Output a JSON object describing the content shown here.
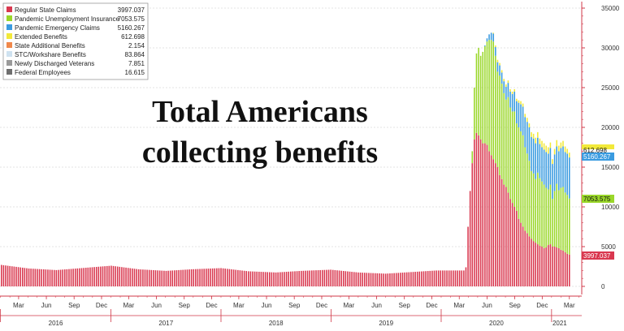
{
  "chart_data": {
    "type": "bar",
    "stacked": true,
    "title": "Total Americans collecting benefits",
    "ylim": [
      0,
      35000
    ],
    "y_ticks": [
      0,
      5000,
      10000,
      15000,
      20000,
      25000,
      30000,
      35000
    ],
    "y_axis_side": "right",
    "grid": "dashed horizontal",
    "legend_position": "top-left",
    "x_month_ticks": [
      "Mar",
      "Jun",
      "Sep",
      "Dec",
      "Mar",
      "Jun",
      "Sep",
      "Dec",
      "Mar",
      "Jun",
      "Sep",
      "Dec",
      "Mar",
      "Jun",
      "Sep",
      "Dec",
      "Mar",
      "Jun",
      "Sep",
      "Dec",
      "Mar"
    ],
    "x_year_ticks": [
      "2016",
      "2017",
      "2018",
      "2019",
      "2020",
      "2021"
    ],
    "series": [
      {
        "name": "Regular State Claims",
        "value": "3997.037",
        "color": "#d9384f"
      },
      {
        "name": "Pandemic Unemployment Insurance",
        "value": "7053.575",
        "color": "#9ad72a"
      },
      {
        "name": "Pandemic Emergency Claims",
        "value": "5160.267",
        "color": "#3a9be0"
      },
      {
        "name": "Extended Benefits",
        "value": "612.698",
        "color": "#f2e93a"
      },
      {
        "name": "State Additional Benefits",
        "value": "2.154",
        "color": "#f0884a"
      },
      {
        "name": "STC/Workshare Benefits",
        "value": "83.864",
        "color": "#cfe2f0"
      },
      {
        "name": "Newly Discharged Veterans",
        "value": "7.851",
        "color": "#9a9a9a"
      },
      {
        "name": "Federal Employees",
        "value": "16.615",
        "color": "#6e6e6e"
      }
    ],
    "end_labels": [
      {
        "text": "612.698",
        "series": "Extended Benefits"
      },
      {
        "text": "5160.267",
        "series": "Pandemic Emergency Claims"
      },
      {
        "text": "7053.575",
        "series": "Pandemic Unemployment Insurance"
      },
      {
        "text": "3997.037",
        "series": "Regular State Claims"
      }
    ],
    "weekly_data": {
      "week_start": "2016-01-02",
      "regular_baseline": [
        [
          0,
          2700
        ],
        [
          13,
          2250
        ],
        [
          26,
          2050
        ],
        [
          38,
          2300
        ],
        [
          52,
          2600
        ],
        [
          65,
          2150
        ],
        [
          78,
          1950
        ],
        [
          90,
          2150
        ],
        [
          104,
          2300
        ],
        [
          117,
          1900
        ],
        [
          130,
          1750
        ],
        [
          142,
          1950
        ],
        [
          156,
          2100
        ],
        [
          169,
          1750
        ],
        [
          182,
          1600
        ],
        [
          194,
          1800
        ],
        [
          206,
          2000
        ]
      ],
      "pandemic": [
        {
          "week": 220,
          "regular": 2400,
          "pui": 0,
          "peuc": 0,
          "eb": 0
        },
        {
          "week": 221,
          "regular": 7500,
          "pui": 0,
          "peuc": 0,
          "eb": 0
        },
        {
          "week": 222,
          "regular": 12000,
          "pui": 0,
          "peuc": 0,
          "eb": 0
        },
        {
          "week": 223,
          "regular": 15500,
          "pui": 1500,
          "peuc": 0,
          "eb": 0
        },
        {
          "week": 224,
          "regular": 18500,
          "pui": 6500,
          "peuc": 0,
          "eb": 0
        },
        {
          "week": 225,
          "regular": 19300,
          "pui": 10000,
          "peuc": 0,
          "eb": 0
        },
        {
          "week": 226,
          "regular": 19000,
          "pui": 11000,
          "peuc": 0,
          "eb": 0
        },
        {
          "week": 227,
          "regular": 18500,
          "pui": 10500,
          "peuc": 0,
          "eb": 0
        },
        {
          "week": 228,
          "regular": 18000,
          "pui": 11500,
          "peuc": 0,
          "eb": 0
        },
        {
          "week": 229,
          "regular": 18000,
          "pui": 12200,
          "peuc": 100,
          "eb": 0
        },
        {
          "week": 230,
          "regular": 17800,
          "pui": 13000,
          "peuc": 400,
          "eb": 0
        },
        {
          "week": 231,
          "regular": 17000,
          "pui": 14000,
          "peuc": 700,
          "eb": 0
        },
        {
          "week": 232,
          "regular": 16500,
          "pui": 14500,
          "peuc": 900,
          "eb": 0
        },
        {
          "week": 233,
          "regular": 16000,
          "pui": 14800,
          "peuc": 1000,
          "eb": 100
        },
        {
          "week": 234,
          "regular": 15500,
          "pui": 13500,
          "peuc": 1100,
          "eb": 200
        },
        {
          "week": 235,
          "regular": 15000,
          "pui": 12000,
          "peuc": 1200,
          "eb": 300
        },
        {
          "week": 236,
          "regular": 14000,
          "pui": 12500,
          "peuc": 1300,
          "eb": 300
        },
        {
          "week": 237,
          "regular": 13500,
          "pui": 12000,
          "peuc": 1400,
          "eb": 300
        },
        {
          "week": 238,
          "regular": 12800,
          "pui": 11500,
          "peuc": 1500,
          "eb": 300
        },
        {
          "week": 239,
          "regular": 12500,
          "pui": 11000,
          "peuc": 1600,
          "eb": 300
        },
        {
          "week": 240,
          "regular": 11800,
          "pui": 12000,
          "peuc": 1800,
          "eb": 300
        },
        {
          "week": 241,
          "regular": 11000,
          "pui": 11500,
          "peuc": 2000,
          "eb": 300
        },
        {
          "week": 242,
          "regular": 10500,
          "pui": 11500,
          "peuc": 2200,
          "eb": 300
        },
        {
          "week": 243,
          "regular": 10000,
          "pui": 12000,
          "peuc": 2500,
          "eb": 300
        },
        {
          "week": 244,
          "regular": 9500,
          "pui": 11000,
          "peuc": 2800,
          "eb": 300
        },
        {
          "week": 245,
          "regular": 8500,
          "pui": 11500,
          "peuc": 3100,
          "eb": 300
        },
        {
          "week": 246,
          "regular": 8000,
          "pui": 11500,
          "peuc": 3400,
          "eb": 400
        },
        {
          "week": 247,
          "regular": 7500,
          "pui": 11500,
          "peuc": 3600,
          "eb": 400
        },
        {
          "week": 248,
          "regular": 7000,
          "pui": 10500,
          "peuc": 3800,
          "eb": 400
        },
        {
          "week": 249,
          "regular": 6700,
          "pui": 10000,
          "peuc": 4000,
          "eb": 500
        },
        {
          "week": 250,
          "regular": 6300,
          "pui": 9500,
          "peuc": 4200,
          "eb": 500
        },
        {
          "week": 251,
          "regular": 6000,
          "pui": 8500,
          "peuc": 4300,
          "eb": 600
        },
        {
          "week": 252,
          "regular": 5700,
          "pui": 8500,
          "peuc": 4400,
          "eb": 600
        },
        {
          "week": 253,
          "regular": 5500,
          "pui": 8000,
          "peuc": 4500,
          "eb": 700
        },
        {
          "week": 254,
          "regular": 5300,
          "pui": 9000,
          "peuc": 4400,
          "eb": 700
        },
        {
          "week": 255,
          "regular": 5100,
          "pui": 8500,
          "peuc": 4300,
          "eb": 700
        },
        {
          "week": 256,
          "regular": 5000,
          "pui": 8200,
          "peuc": 4300,
          "eb": 800
        },
        {
          "week": 257,
          "regular": 4800,
          "pui": 8000,
          "peuc": 4400,
          "eb": 800
        },
        {
          "week": 258,
          "regular": 4900,
          "pui": 7500,
          "peuc": 4500,
          "eb": 800
        },
        {
          "week": 259,
          "regular": 5200,
          "pui": 7000,
          "peuc": 4500,
          "eb": 800
        },
        {
          "week": 260,
          "regular": 5300,
          "pui": 7500,
          "peuc": 4600,
          "eb": 700
        },
        {
          "week": 261,
          "regular": 5000,
          "pui": 6000,
          "peuc": 4400,
          "eb": 600
        },
        {
          "week": 262,
          "regular": 5000,
          "pui": 7000,
          "peuc": 4600,
          "eb": 700
        },
        {
          "week": 263,
          "regular": 4900,
          "pui": 8000,
          "peuc": 4700,
          "eb": 800
        },
        {
          "week": 264,
          "regular": 4800,
          "pui": 7300,
          "peuc": 4900,
          "eb": 700
        },
        {
          "week": 265,
          "regular": 4600,
          "pui": 7800,
          "peuc": 5000,
          "eb": 700
        },
        {
          "week": 266,
          "regular": 4500,
          "pui": 8000,
          "peuc": 5100,
          "eb": 700
        },
        {
          "week": 267,
          "regular": 4300,
          "pui": 7500,
          "peuc": 5100,
          "eb": 700
        },
        {
          "week": 268,
          "regular": 4100,
          "pui": 7400,
          "peuc": 5200,
          "eb": 600
        },
        {
          "week": 269,
          "regular": 4000,
          "pui": 7054,
          "peuc": 5160,
          "eb": 613
        }
      ]
    }
  }
}
